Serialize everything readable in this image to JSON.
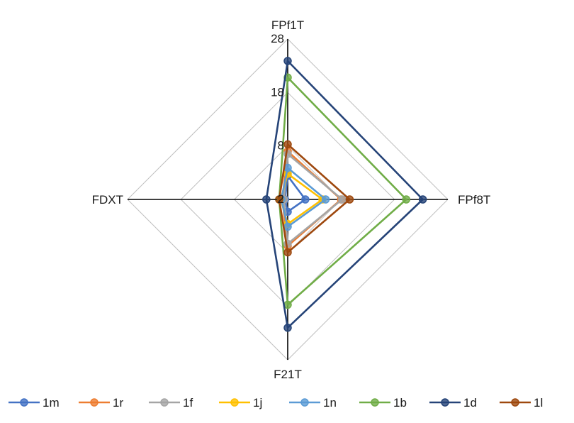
{
  "chart_data": {
    "type": "radar",
    "axes": [
      "FPf1T",
      "FPf8T",
      "F21T",
      "FDXT"
    ],
    "r_ticks": [
      -2,
      8,
      18,
      28
    ],
    "r_range": [
      -2,
      28
    ],
    "grid": true,
    "legend_position": "bottom",
    "series": [
      {
        "name": "1m",
        "color": "#4472C4",
        "values": [
          2.4,
          1.3,
          0.3,
          -1.5
        ]
      },
      {
        "name": "1r",
        "color": "#ED7D31",
        "values": [
          7.0,
          8.0,
          6.7,
          -1.0
        ]
      },
      {
        "name": "1f",
        "color": "#A5A5A5",
        "values": [
          6.5,
          8.2,
          6.3,
          -1.3
        ]
      },
      {
        "name": "1j",
        "color": "#FFC000",
        "values": [
          2.8,
          4.5,
          2.6,
          -0.7
        ]
      },
      {
        "name": "1n",
        "color": "#5B9BD5",
        "values": [
          3.9,
          5.1,
          3.1,
          -0.8
        ]
      },
      {
        "name": "1b",
        "color": "#70AD47",
        "values": [
          20.8,
          20.2,
          17.7,
          -0.4
        ]
      },
      {
        "name": "1d",
        "color": "#264478",
        "values": [
          23.9,
          23.3,
          22.0,
          2.0
        ]
      },
      {
        "name": "1l",
        "color": "#9E480E",
        "values": [
          8.3,
          9.6,
          7.9,
          -0.4
        ]
      }
    ]
  }
}
